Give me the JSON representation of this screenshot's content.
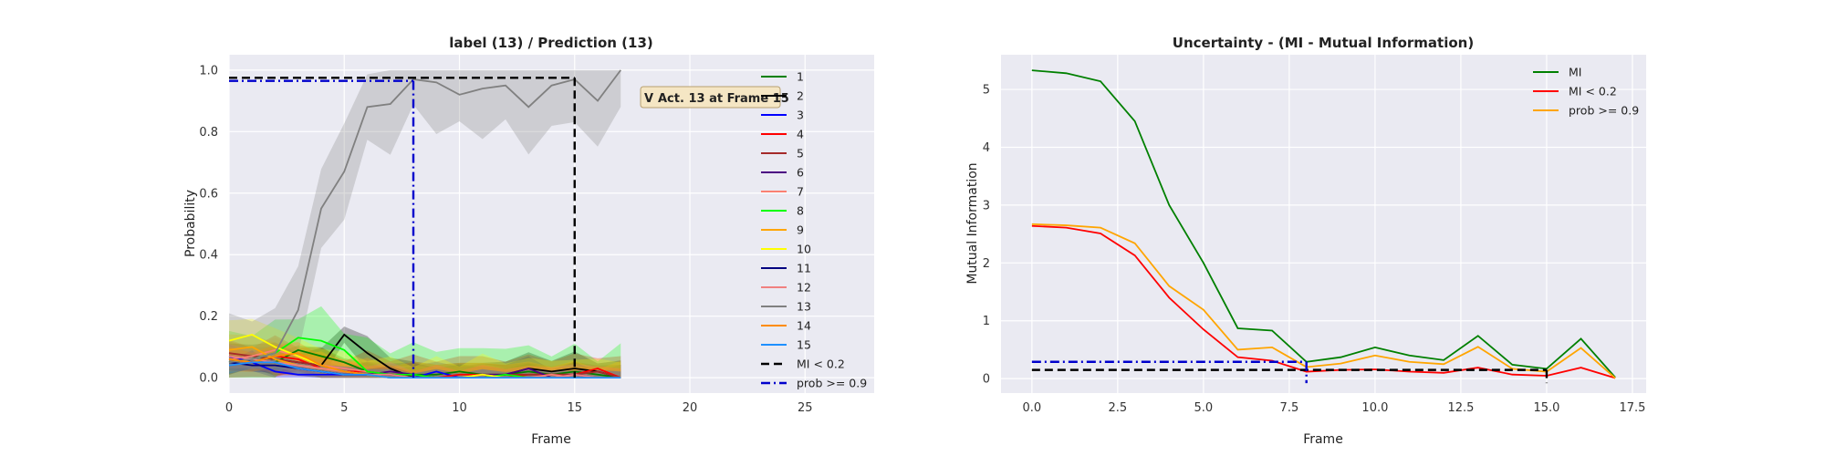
{
  "chart_data": [
    {
      "type": "line",
      "title": "label (13) / Prediction (13)",
      "xlabel": "Frame",
      "ylabel": "Probability",
      "xlim": [
        0,
        28
      ],
      "ylim": [
        -0.05,
        1.05
      ],
      "xticks": [
        "0",
        "5",
        "10",
        "15",
        "20",
        "25"
      ],
      "yticks": [
        "0.0",
        "0.2",
        "0.4",
        "0.6",
        "0.8",
        "1.0"
      ],
      "grid": true,
      "legend_position": "top-right",
      "x": [
        0,
        1,
        2,
        3,
        4,
        5,
        6,
        7,
        8,
        9,
        10,
        11,
        12,
        13,
        14,
        15,
        16,
        17
      ],
      "series": [
        {
          "name": "1",
          "color": "#008000",
          "values": [
            0.05,
            0.06,
            0.05,
            0.09,
            0.07,
            0.05,
            0.02,
            0.01,
            0.01,
            0.01,
            0.02,
            0.01,
            0.01,
            0.02,
            0.01,
            0.02,
            0.01,
            0.0
          ],
          "band": 0.02
        },
        {
          "name": "2",
          "color": "#000000",
          "values": [
            0.06,
            0.07,
            0.06,
            0.05,
            0.04,
            0.14,
            0.08,
            0.03,
            0.0,
            0.0,
            0.0,
            0.0,
            0.01,
            0.03,
            0.02,
            0.03,
            0.02,
            0.0
          ],
          "band": 0.04
        },
        {
          "name": "3",
          "color": "#0000ff",
          "values": [
            0.07,
            0.05,
            0.02,
            0.01,
            0.01,
            0.01,
            0.01,
            0.0,
            0.0,
            0.02,
            0.0,
            0.0,
            0.0,
            0.0,
            0.0,
            0.0,
            0.0,
            0.0
          ],
          "band": 0.03
        },
        {
          "name": "4",
          "color": "#ff0000",
          "values": [
            0.06,
            0.05,
            0.07,
            0.06,
            0.03,
            0.02,
            0.02,
            0.01,
            0.01,
            0.0,
            0.01,
            0.01,
            0.0,
            0.01,
            0.01,
            0.01,
            0.03,
            0.0
          ],
          "band": 0.05
        },
        {
          "name": "5",
          "color": "#a52a2a",
          "values": [
            0.08,
            0.07,
            0.06,
            0.05,
            0.04,
            0.02,
            0.01,
            0.01,
            0.01,
            0.0,
            0.0,
            0.01,
            0.01,
            0.01,
            0.01,
            0.01,
            0.02,
            0.0
          ],
          "band": 0.03
        },
        {
          "name": "6",
          "color": "#4b0082",
          "values": [
            0.05,
            0.06,
            0.05,
            0.03,
            0.02,
            0.01,
            0.01,
            0.02,
            0.01,
            0.0,
            0.0,
            0.01,
            0.01,
            0.03,
            0.0,
            0.01,
            0.0,
            0.0
          ],
          "band": 0.03
        },
        {
          "name": "7",
          "color": "#fa8072",
          "values": [
            0.06,
            0.07,
            0.09,
            0.07,
            0.04,
            0.03,
            0.02,
            0.01,
            0.0,
            0.0,
            0.0,
            0.01,
            0.0,
            0.0,
            0.01,
            0.0,
            0.0,
            0.0
          ],
          "band": 0.03
        },
        {
          "name": "8",
          "color": "#00ff00",
          "values": [
            0.05,
            0.06,
            0.08,
            0.13,
            0.12,
            0.09,
            0.02,
            0.01,
            0.01,
            0.0,
            0.0,
            0.0,
            0.01,
            0.0,
            0.0,
            0.0,
            0.0,
            0.0
          ],
          "band": 0.08
        },
        {
          "name": "9",
          "color": "#ffa500",
          "values": [
            0.09,
            0.1,
            0.06,
            0.04,
            0.03,
            0.02,
            0.01,
            0.0,
            0.0,
            0.0,
            0.0,
            0.0,
            0.0,
            0.0,
            0.0,
            0.0,
            0.0,
            0.0
          ],
          "band": 0.04
        },
        {
          "name": "10",
          "color": "#ffff00",
          "values": [
            0.12,
            0.14,
            0.1,
            0.07,
            0.04,
            0.02,
            0.01,
            0.0,
            0.0,
            0.0,
            0.0,
            0.01,
            0.0,
            0.0,
            0.0,
            0.0,
            0.0,
            0.0
          ],
          "band": 0.05
        },
        {
          "name": "11",
          "color": "#000080",
          "values": [
            0.05,
            0.04,
            0.04,
            0.03,
            0.02,
            0.01,
            0.01,
            0.01,
            0.0,
            0.0,
            0.0,
            0.0,
            0.0,
            0.0,
            0.0,
            0.0,
            0.0,
            0.0
          ],
          "band": 0.02
        },
        {
          "name": "12",
          "color": "#f08080",
          "values": [
            0.07,
            0.06,
            0.05,
            0.04,
            0.03,
            0.02,
            0.01,
            0.01,
            0.0,
            0.0,
            0.0,
            0.0,
            0.0,
            0.0,
            0.0,
            0.01,
            0.0,
            0.0
          ],
          "band": 0.03
        },
        {
          "name": "13",
          "color": "#808080",
          "values": [
            0.05,
            0.06,
            0.08,
            0.22,
            0.55,
            0.67,
            0.88,
            0.89,
            0.97,
            0.96,
            0.92,
            0.94,
            0.95,
            0.88,
            0.95,
            0.97,
            0.9,
            1.0
          ],
          "band": 0.12
        },
        {
          "name": "14",
          "color": "#ff8c00",
          "values": [
            0.06,
            0.05,
            0.07,
            0.08,
            0.04,
            0.02,
            0.01,
            0.0,
            0.0,
            0.0,
            0.0,
            0.0,
            0.0,
            0.0,
            0.0,
            0.0,
            0.0,
            0.0
          ],
          "band": 0.03
        },
        {
          "name": "15",
          "color": "#1e90ff",
          "values": [
            0.04,
            0.05,
            0.05,
            0.03,
            0.02,
            0.01,
            0.01,
            0.0,
            0.0,
            0.0,
            0.0,
            0.0,
            0.0,
            0.0,
            0.0,
            0.0,
            0.0,
            0.0
          ],
          "band": 0.02
        }
      ],
      "threshold_lines": [
        {
          "name": "MI < 0.2",
          "color": "#000000",
          "style": "dashed",
          "y": 0.975,
          "x_from": 0,
          "x_to": 15
        },
        {
          "name": "prob >= 0.9",
          "color": "#0000cc",
          "style": "dashdot",
          "y": 0.965,
          "x_from": 0,
          "x_to": 8
        }
      ],
      "annotation": {
        "text": "Act. 13 at Frame 15",
        "badge": "V",
        "x": 15,
        "y": 0.92
      }
    },
    {
      "type": "line",
      "title": "Uncertainty - (MI - Mutual Information)",
      "xlabel": "Frame",
      "ylabel": "Mutual Information",
      "xlim": [
        -0.9,
        17.9
      ],
      "ylim": [
        -0.25,
        5.6
      ],
      "xticks": [
        "0.0",
        "2.5",
        "5.0",
        "7.5",
        "10.0",
        "12.5",
        "15.0",
        "17.5"
      ],
      "yticks": [
        "0",
        "1",
        "2",
        "3",
        "4",
        "5"
      ],
      "grid": true,
      "legend_position": "top-right",
      "x": [
        0,
        1,
        2,
        3,
        4,
        5,
        6,
        7,
        8,
        9,
        10,
        11,
        12,
        13,
        14,
        15,
        16,
        17
      ],
      "series": [
        {
          "name": "MI",
          "color": "#008000",
          "values": [
            5.33,
            5.28,
            5.14,
            4.45,
            3.0,
            2.0,
            0.87,
            0.83,
            0.29,
            0.37,
            0.54,
            0.4,
            0.32,
            0.74,
            0.24,
            0.17,
            0.69,
            0.02
          ]
        },
        {
          "name": "MI < 0.2",
          "color": "#ff0000",
          "values": [
            2.64,
            2.61,
            2.51,
            2.13,
            1.4,
            0.85,
            0.37,
            0.31,
            0.12,
            0.15,
            0.16,
            0.12,
            0.1,
            0.19,
            0.07,
            0.05,
            0.19,
            0.01
          ]
        },
        {
          "name": "prob >= 0.9",
          "color": "#ffa500",
          "values": [
            2.67,
            2.65,
            2.61,
            2.34,
            1.6,
            1.19,
            0.5,
            0.54,
            0.2,
            0.26,
            0.4,
            0.29,
            0.25,
            0.55,
            0.17,
            0.12,
            0.53,
            0.01
          ]
        }
      ],
      "threshold_lines": [
        {
          "color": "#000000",
          "style": "dashed",
          "y": 0.15,
          "x_from": 0,
          "x_to": 15
        },
        {
          "color": "#0000cc",
          "style": "dashdot",
          "y": 0.29,
          "x_from": 0,
          "x_to": 8
        }
      ]
    }
  ]
}
